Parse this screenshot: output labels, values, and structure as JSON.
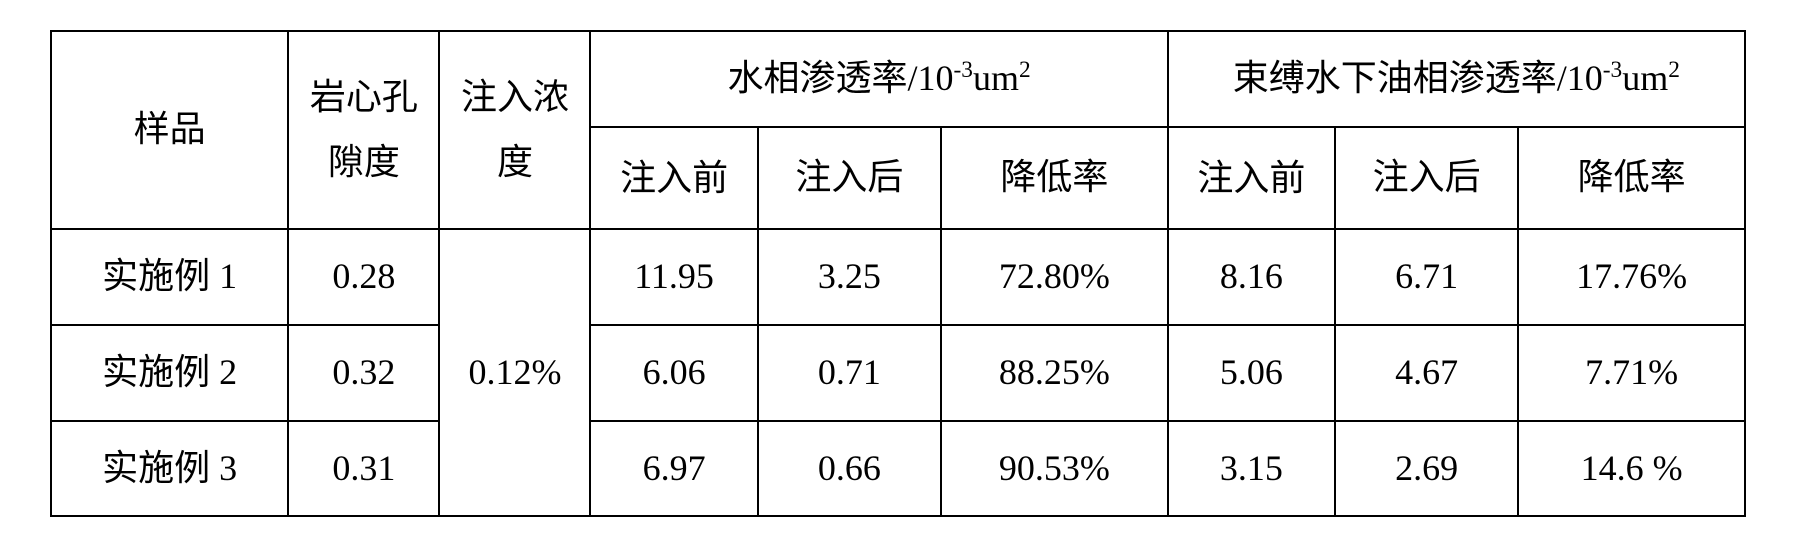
{
  "table": {
    "columns": {
      "sample": "样品",
      "porosity": "岩心孔隙度",
      "concentration": "注入浓度",
      "water_group_prefix": "水相渗透率/10",
      "water_group_exp": "-3",
      "water_group_unit": "um",
      "water_group_unit_exp": "2",
      "oil_group_prefix": "束缚水下油相渗透率/10",
      "oil_group_exp": "-3",
      "oil_group_unit": "um",
      "oil_group_unit_exp": "2",
      "before": "注入前",
      "after": "注入后",
      "reduction_rate": "降低率"
    },
    "concentration_shared": "0.12%",
    "rows": [
      {
        "sample": "实施例 1",
        "porosity": "0.28",
        "water_before": "11.95",
        "water_after": "3.25",
        "water_rate": "72.80%",
        "oil_before": "8.16",
        "oil_after": "6.71",
        "oil_rate": "17.76%"
      },
      {
        "sample": "实施例 2",
        "porosity": "0.32",
        "water_before": "6.06",
        "water_after": "0.71",
        "water_rate": "88.25%",
        "oil_before": "5.06",
        "oil_after": "4.67",
        "oil_rate": "7.71%"
      },
      {
        "sample": "实施例 3",
        "porosity": "0.31",
        "water_before": "6.97",
        "water_after": "0.66",
        "water_rate": "90.53%",
        "oil_before": "3.15",
        "oil_after": "2.69",
        "oil_rate": "14.6 %"
      }
    ],
    "border_color": "#000000",
    "background_color": "#ffffff",
    "font_size": 36,
    "cell_padding": 18
  }
}
